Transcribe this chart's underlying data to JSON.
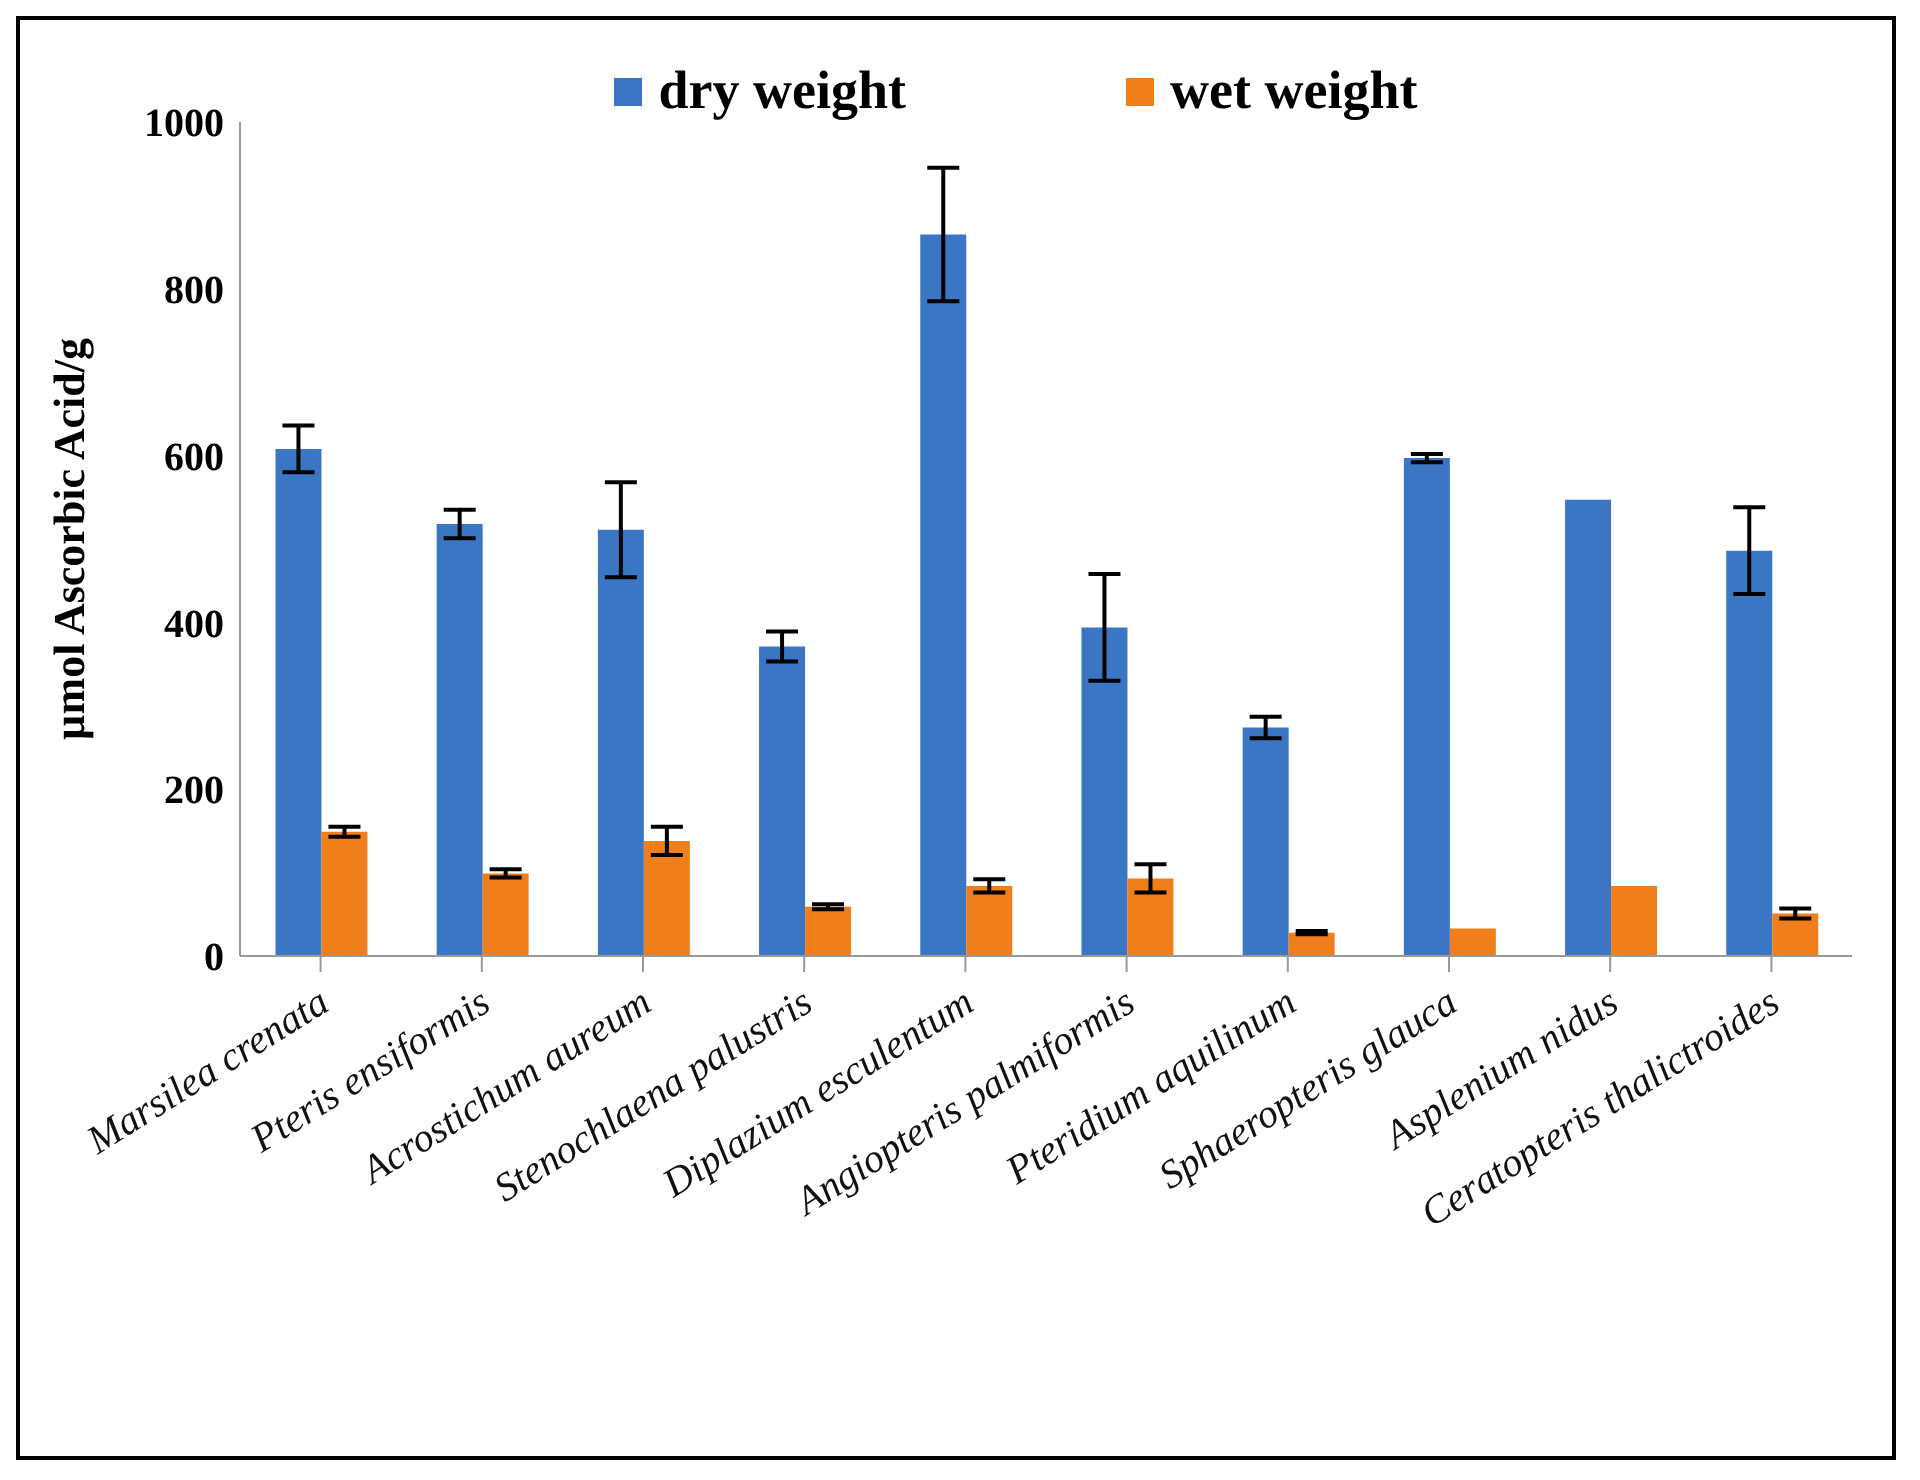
{
  "chart_data": {
    "type": "bar",
    "ylabel": "µmol Ascorbic Acid/g",
    "categories": [
      "Marsilea crenata",
      "Pteris ensiformis",
      "Acrostichum aureum",
      "Stenochlaena palustris",
      "Diplazium esculentum",
      "Angiopteris palmiformis",
      "Pteridium aquilinum",
      "Sphaeropteris glauca",
      "Asplenium nidus",
      "Ceratopteris thalictroides"
    ],
    "series": [
      {
        "name": "dry weight",
        "color": "#3b76c4",
        "values": [
          608,
          518,
          511,
          371,
          865,
          394,
          274,
          597,
          547,
          486
        ],
        "errors": [
          28,
          17,
          57,
          18,
          80,
          64,
          13,
          5,
          null,
          52
        ]
      },
      {
        "name": "wet weight",
        "color": "#f07e1a",
        "values": [
          149,
          99,
          138,
          59,
          84,
          93,
          28,
          33,
          84,
          51
        ],
        "errors": [
          6,
          5,
          17,
          3,
          8,
          17,
          2,
          null,
          null,
          6
        ]
      }
    ],
    "ylim": [
      0,
      1000
    ],
    "yticks": [
      0,
      200,
      400,
      600,
      800,
      1000
    ],
    "grid": false,
    "legend": "top"
  }
}
